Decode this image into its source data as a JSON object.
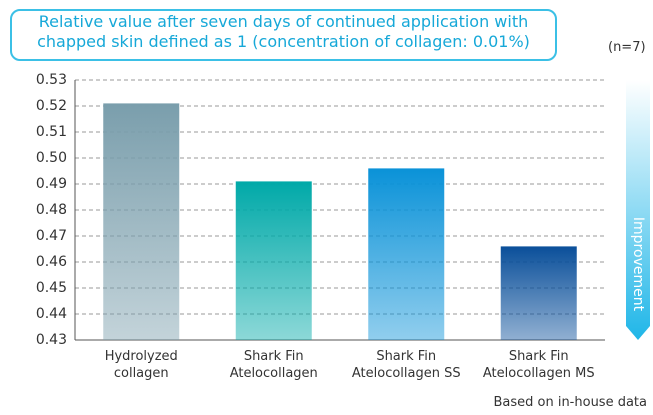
{
  "chart_data": {
    "type": "bar",
    "title": "Relative value after seven days of continued application with chapped skin defined as 1 (concentration of collagen: 0.01%)",
    "note": "(n=7)",
    "annotation": "Improvement",
    "source": "Based on in-house data",
    "categories": [
      "Hydrolyzed collagen",
      "Shark Fin Atelocollagen",
      "Shark Fin Atelocollagen SS",
      "Shark Fin Atelocollagen MS"
    ],
    "values": [
      0.521,
      0.491,
      0.496,
      0.466
    ],
    "colors": [
      "#7a9eac",
      "#00a9a8",
      "#0a92d8",
      "#0a4f9a"
    ],
    "ylim": [
      0.43,
      0.53
    ],
    "yticks": [
      0.43,
      0.44,
      0.45,
      0.46,
      0.47,
      0.48,
      0.49,
      {
        "value": 0.5,
        "label": "0.50"
      },
      0.51,
      0.52,
      0.53
    ],
    "grid": true
  }
}
